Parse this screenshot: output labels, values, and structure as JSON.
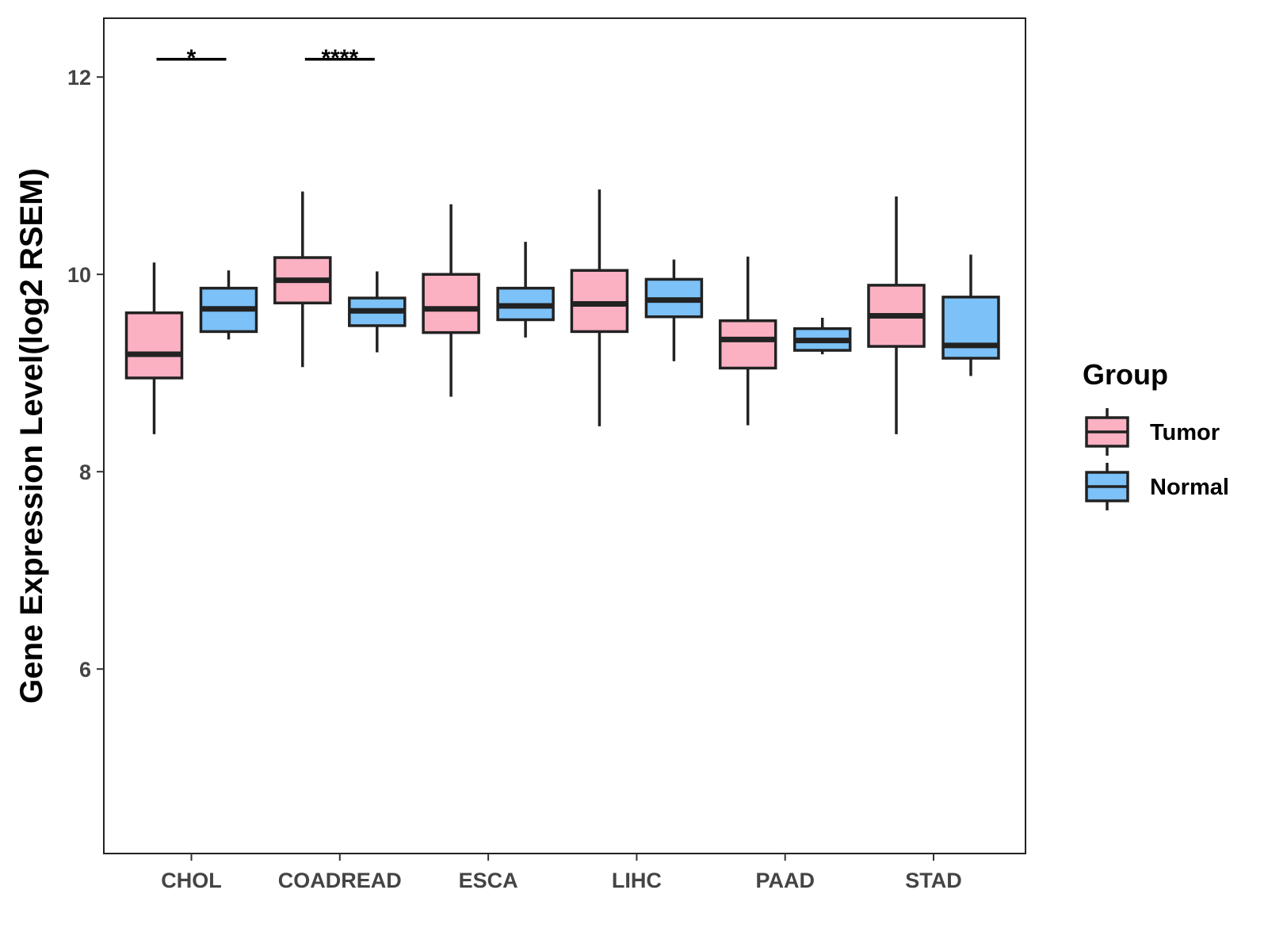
{
  "chart_data": {
    "type": "boxplot",
    "title": "",
    "xlabel": "",
    "ylabel": "Gene Expression Level(log2 RSEM)",
    "ylim": [
      4.2,
      12.6
    ],
    "yticks": [
      6,
      8,
      10,
      12
    ],
    "ytick_labels": [
      "6",
      "8",
      "10",
      "12"
    ],
    "categories": [
      "CHOL",
      "COADREAD",
      "ESCA",
      "LIHC",
      "PAAD",
      "STAD"
    ],
    "grid": false,
    "legend": {
      "title": "Group",
      "position": "right"
    },
    "series": [
      {
        "name": "Tumor",
        "color": "#FBB1C2",
        "boxes": [
          {
            "min": 8.38,
            "q1": 8.95,
            "median": 9.19,
            "q3": 9.61,
            "max": 10.12
          },
          {
            "min": 9.06,
            "q1": 9.71,
            "median": 9.94,
            "q3": 10.17,
            "max": 10.84
          },
          {
            "min": 8.76,
            "q1": 9.41,
            "median": 9.65,
            "q3": 10.0,
            "max": 10.71
          },
          {
            "min": 8.46,
            "q1": 9.42,
            "median": 9.7,
            "q3": 10.04,
            "max": 10.86
          },
          {
            "min": 8.47,
            "q1": 9.05,
            "median": 9.34,
            "q3": 9.53,
            "max": 10.18
          },
          {
            "min": 8.38,
            "q1": 9.27,
            "median": 9.58,
            "q3": 9.89,
            "max": 10.79
          }
        ]
      },
      {
        "name": "Normal",
        "color": "#7CC1F7",
        "boxes": [
          {
            "min": 9.34,
            "q1": 9.42,
            "median": 9.65,
            "q3": 9.86,
            "max": 10.04
          },
          {
            "min": 9.21,
            "q1": 9.48,
            "median": 9.63,
            "q3": 9.76,
            "max": 10.03
          },
          {
            "min": 9.36,
            "q1": 9.54,
            "median": 9.68,
            "q3": 9.86,
            "max": 10.33
          },
          {
            "min": 9.12,
            "q1": 9.57,
            "median": 9.74,
            "q3": 9.95,
            "max": 10.15
          },
          {
            "min": 9.19,
            "q1": 9.23,
            "median": 9.33,
            "q3": 9.45,
            "max": 9.56
          },
          {
            "min": 8.97,
            "q1": 9.15,
            "median": 9.28,
            "q3": 9.77,
            "max": 10.2
          }
        ]
      }
    ],
    "annotations": [
      {
        "category": "CHOL",
        "label": "*",
        "y": 12.18
      },
      {
        "category": "COADREAD",
        "label": "****",
        "y": 12.18
      }
    ]
  }
}
